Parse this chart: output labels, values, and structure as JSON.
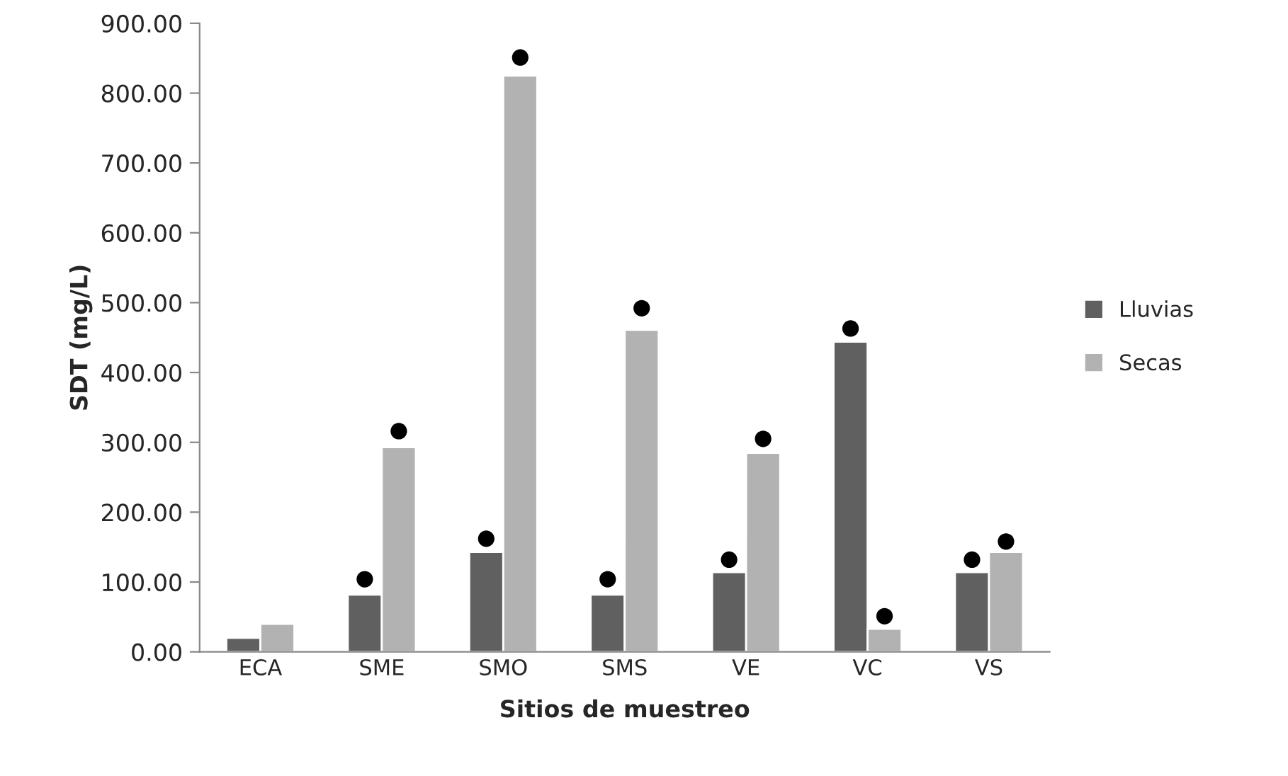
{
  "chart_data": {
    "type": "bar",
    "xlabel": "Sitios de muestreo",
    "ylabel": "SDT (mg/L)",
    "categories": [
      "ECA",
      "SME",
      "SMO",
      "SMS",
      "VE",
      "VC",
      "VS"
    ],
    "series": [
      {
        "name": "Lluvias",
        "color": "#606060",
        "values": [
          20,
          82,
          143,
          82,
          114,
          444,
          114
        ]
      },
      {
        "name": "Secas",
        "color": "#b2b2b2",
        "values": [
          40,
          293,
          825,
          461,
          285,
          33,
          143
        ]
      },
      {
        "type": "scatter",
        "color": "#000000",
        "marker": "circle",
        "x": [
          "ECA",
          "SME",
          "SMO",
          "SMS",
          "VE",
          "VC",
          "VS"
        ],
        "values": [
          null,
          104,
          162,
          104,
          132,
          463,
          132
        ]
      },
      {
        "type": "scatter",
        "color": "#000000",
        "marker": "circle",
        "x": [
          "ECA",
          "SME",
          "SMO",
          "SMS",
          "VE",
          "VC",
          "VS"
        ],
        "values": [
          null,
          316,
          851,
          492,
          305,
          51,
          158
        ]
      }
    ],
    "ylim": [
      0,
      900
    ],
    "yticks": [
      {
        "value": 0,
        "label": "0.00"
      },
      {
        "value": 100,
        "label": "100.00"
      },
      {
        "value": 200,
        "label": "200.00"
      },
      {
        "value": 300,
        "label": "300.00"
      },
      {
        "value": 400,
        "label": "400.00"
      },
      {
        "value": 500,
        "label": "500.00"
      },
      {
        "value": 600,
        "label": "600.00"
      },
      {
        "value": 700,
        "label": "700.00"
      },
      {
        "value": 800,
        "label": "800.00"
      },
      {
        "value": 900,
        "label": "900.00"
      }
    ],
    "grid": false,
    "legend": "right"
  }
}
